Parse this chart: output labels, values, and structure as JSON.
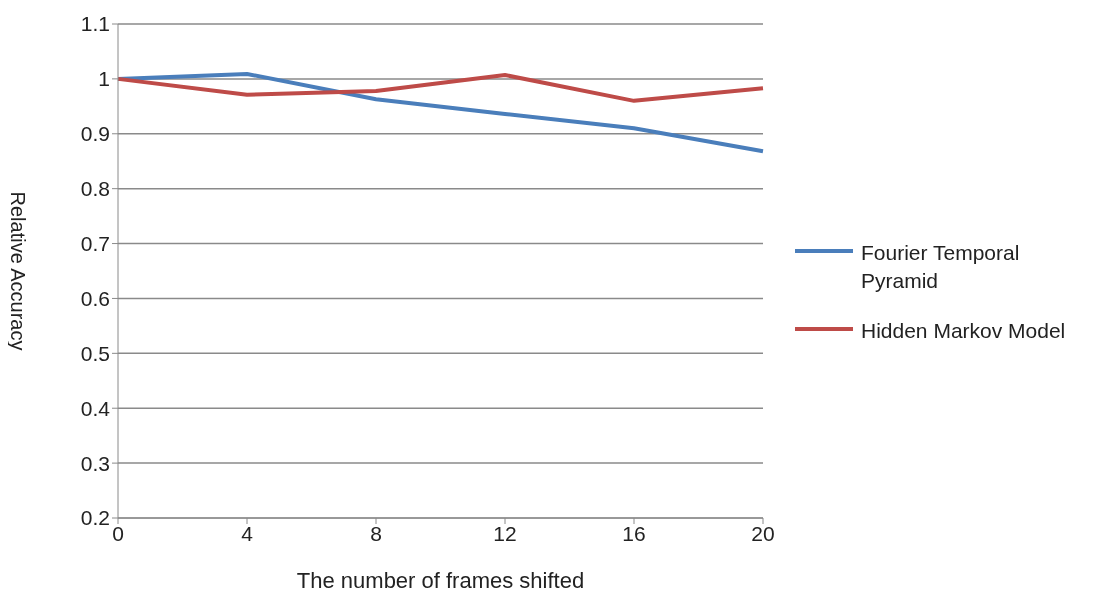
{
  "chart_data": {
    "type": "line",
    "xlabel": "The number of frames shifted",
    "ylabel": "Relative Accuracy",
    "categories": [
      "0",
      "4",
      "8",
      "12",
      "16",
      "20"
    ],
    "series": [
      {
        "name": "Fourier Temporal Pyramid",
        "color": "#4a7ebb",
        "values": [
          1.0,
          1.009,
          0.963,
          0.936,
          0.91,
          0.868
        ]
      },
      {
        "name": "Hidden Markov Model",
        "color": "#be4b48",
        "values": [
          1.0,
          0.971,
          0.978,
          1.007,
          0.96,
          0.983
        ]
      }
    ],
    "ylim": [
      0.2,
      1.1
    ],
    "yticks": [
      0.2,
      0.3,
      0.4,
      0.5,
      0.6,
      0.7,
      0.8,
      0.9,
      1,
      1.1
    ],
    "grid": "y",
    "legend": "right",
    "marker": "none",
    "line_style": "solid"
  }
}
